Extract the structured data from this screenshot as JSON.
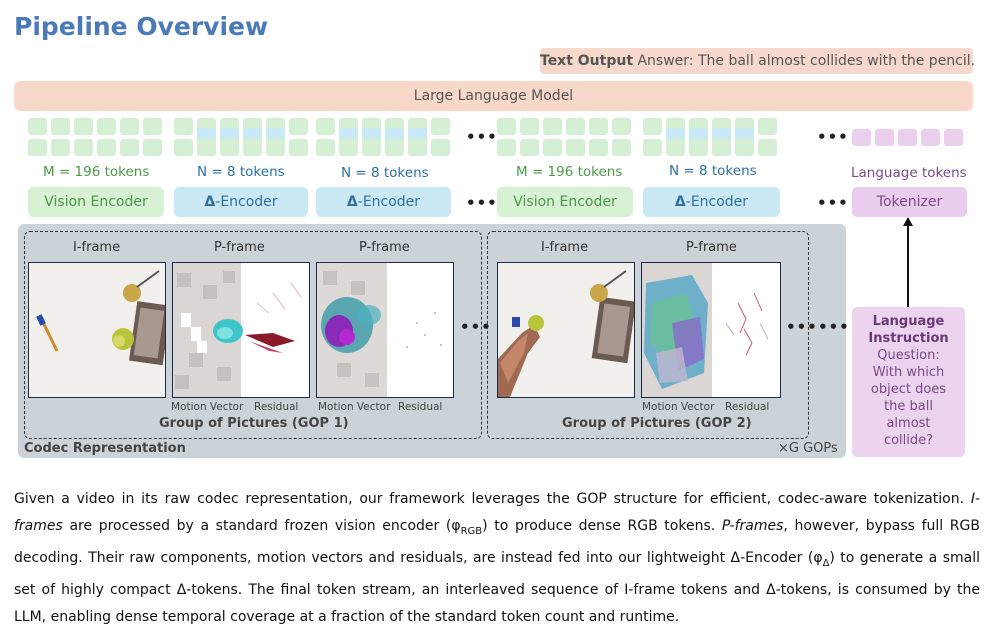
{
  "title": "Pipeline Overview",
  "text_output": {
    "label": "Text Output",
    "answer": "Answer: The ball almost collides with the pencil."
  },
  "llm_label": "Large Language Model",
  "tokens": {
    "vision_label": "M = 196 tokens",
    "delta_label": "N = 8 tokens",
    "language_label": "Language tokens"
  },
  "encoders": {
    "vision": "Vision Encoder",
    "delta_symbol": "Δ",
    "delta_rest": "-Encoder",
    "tokenizer": "Tokenizer"
  },
  "ellipsis": "•••",
  "frames": {
    "i_frame": "I-frame",
    "p_frame": "P-frame",
    "motion_vector": "Motion Vector",
    "residual": "Residual"
  },
  "gop1_label": "Group of Pictures (GOP 1)",
  "gop2_label": "Group of Pictures (GOP 2)",
  "codec_label": "Codec Representation",
  "xg_label": "×G GOPs",
  "instruction": {
    "heading": "Language Instruction",
    "question": "Question: With which object does the ball almost collide?"
  },
  "caption": {
    "p1": "Given a video in its raw codec representation, our framework leverages the GOP structure for efficient, codec-aware tokenization. ",
    "iframes": "I-frames",
    "p2": " are processed by a standard frozen vision encoder (φ",
    "rgb_sub": "RGB",
    "p3": ") to produce dense RGB tokens. ",
    "pframes": "P-frames",
    "p4": ", however, bypass full RGB decoding. Their raw components, motion vectors and residuals, are instead fed into our lightweight Δ-Encoder (φ",
    "delta_sub": "Δ",
    "p5": ") to generate a small set of highly compact Δ-tokens. The final token stream, an interleaved sequence of I-frame tokens and Δ-tokens, is consumed by the LLM, enabling dense temporal coverage at a fraction of the standard token count and runtime."
  }
}
